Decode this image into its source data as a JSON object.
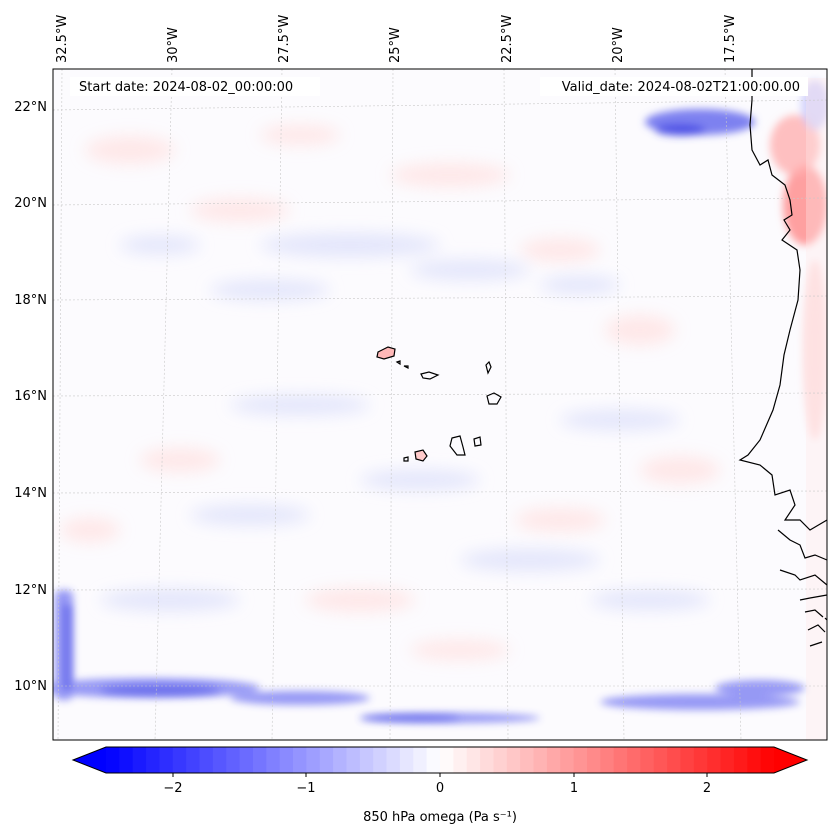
{
  "map": {
    "start_date_label": "Start date: 2024-08-02_00:00:00",
    "valid_date_label": "Valid_date: 2024-08-02T21:00:00.00",
    "lon_labels": [
      "32.5°W",
      "30°W",
      "27.5°W",
      "25°W",
      "22.5°W",
      "20°W",
      "17.5°W"
    ],
    "lat_labels": [
      "22°N",
      "20°N",
      "18°N",
      "16°N",
      "14°N",
      "12°N",
      "10°N"
    ],
    "colormap": "bwr",
    "colors": {
      "negative": "#0000ff",
      "neutral": "#ffffff",
      "positive": "#ff0000",
      "coastline": "#000000"
    }
  },
  "colorbar": {
    "label": "850 hPa omega (Pa s⁻¹)",
    "ticks": [
      "−2",
      "−1",
      "0",
      "1",
      "2"
    ],
    "range": [
      -2.5,
      2.5
    ],
    "extend": "both"
  }
}
